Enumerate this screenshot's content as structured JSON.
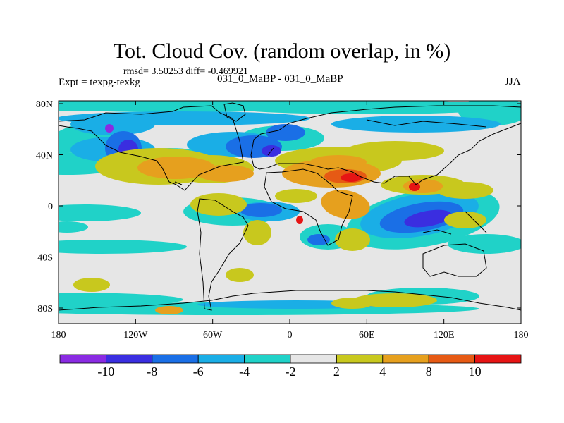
{
  "title": "Tot. Cloud Cov. (random overlap, in %)",
  "stats": "rmsd= 3.50253  diff= -0.469921",
  "experiment": "Expt = texpg-texkg",
  "runs": "031_0_MaBP - 031_0_MaBP",
  "season": "JJA",
  "axes": {
    "x_ticks": [
      "180",
      "120W",
      "60W",
      "0",
      "60E",
      "120E",
      "180"
    ],
    "y_ticks": [
      "80N",
      "40N",
      "0",
      "40S",
      "80S"
    ]
  },
  "colorbar": {
    "labels": [
      "-10",
      "-8",
      "-6",
      "-4",
      "-2",
      "2",
      "4",
      "8",
      "10"
    ],
    "colors": [
      "#8a2be2",
      "#3a2ee0",
      "#1a6fe6",
      "#1aaee6",
      "#20d2c8",
      "#e6e6e6",
      "#c8c81e",
      "#e6a01e",
      "#e65a14",
      "#e61414"
    ]
  },
  "palette": {
    "background": "#e6e6e6",
    "coast": "#000000"
  }
}
